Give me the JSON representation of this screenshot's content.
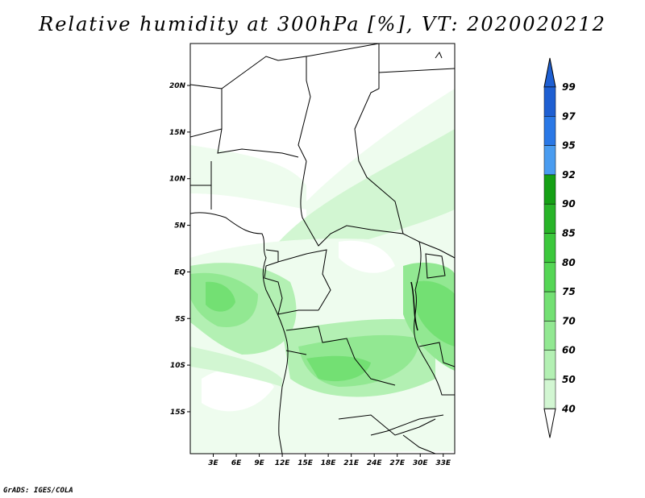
{
  "title": "Relative humidity at 300hPa [%], VT: 2020020212",
  "credit": "GrADS: IGES/COLA",
  "map": {
    "lat_labels": [
      "20N",
      "15N",
      "10N",
      "5N",
      "EQ",
      "5S",
      "10S",
      "15S"
    ],
    "lat_values": [
      20,
      15,
      10,
      5,
      0,
      -5,
      -10,
      -15
    ],
    "lon_labels": [
      "3E",
      "6E",
      "9E",
      "12E",
      "15E",
      "18E",
      "21E",
      "24E",
      "27E",
      "30E",
      "33E"
    ],
    "lon_values": [
      3,
      6,
      9,
      12,
      15,
      18,
      21,
      24,
      27,
      30,
      33
    ],
    "lon_range": [
      0,
      34.5
    ],
    "lat_range": [
      -19.5,
      24.5
    ]
  },
  "colorbar": {
    "levels": [
      "99",
      "97",
      "95",
      "92",
      "90",
      "85",
      "80",
      "75",
      "70",
      "60",
      "50",
      "40"
    ],
    "colors": [
      "#1e5fd2",
      "#2a78e6",
      "#4a9cf0",
      "#15a015",
      "#28b428",
      "#3cc83c",
      "#55d655",
      "#73e073",
      "#92e892",
      "#b3f0b3",
      "#d2f6d2",
      "#eefcee"
    ],
    "top_color": "#1e5fd2"
  }
}
